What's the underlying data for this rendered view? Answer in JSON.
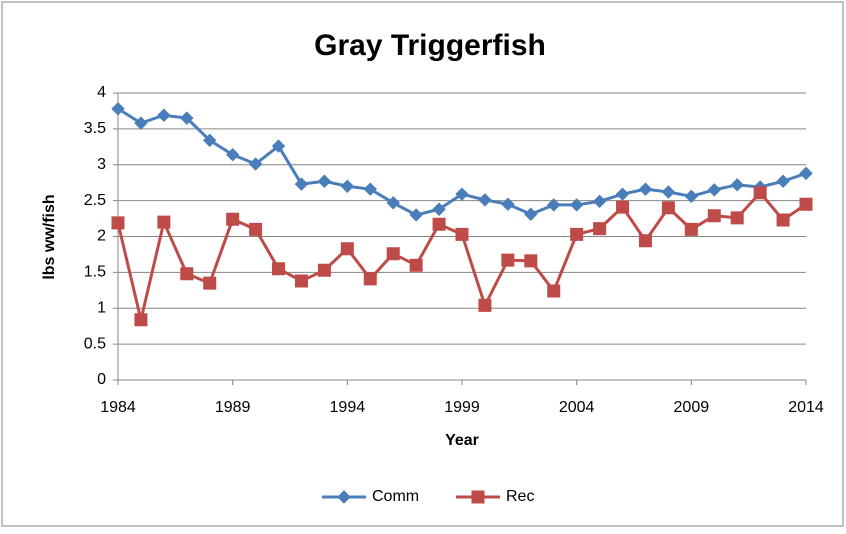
{
  "chart_data": {
    "type": "line",
    "title": "Gray Triggerfish",
    "x_label": "Year",
    "y_label": "lbs ww/fish",
    "x": [
      1984,
      1985,
      1986,
      1987,
      1988,
      1989,
      1990,
      1991,
      1992,
      1993,
      1994,
      1995,
      1996,
      1997,
      1998,
      1999,
      2000,
      2001,
      2002,
      2003,
      2004,
      2005,
      2006,
      2007,
      2008,
      2009,
      2010,
      2011,
      2012,
      2013,
      2014
    ],
    "series": [
      {
        "name": "Comm",
        "color": "#4a7ebb",
        "marker": "diamond",
        "values": [
          3.78,
          3.58,
          3.69,
          3.65,
          3.34,
          3.14,
          3.01,
          3.26,
          2.73,
          2.77,
          2.7,
          2.66,
          2.47,
          2.3,
          2.38,
          2.59,
          2.51,
          2.45,
          2.31,
          2.44,
          2.44,
          2.49,
          2.59,
          2.66,
          2.62,
          2.56,
          2.65,
          2.72,
          2.69,
          2.77,
          2.88
        ]
      },
      {
        "name": "Rec",
        "color": "#be4b48",
        "marker": "square",
        "values": [
          2.19,
          0.84,
          2.2,
          1.48,
          1.35,
          2.24,
          2.1,
          1.55,
          1.38,
          1.53,
          1.83,
          1.41,
          1.76,
          1.6,
          2.17,
          2.03,
          1.04,
          1.67,
          1.66,
          1.24,
          2.03,
          2.11,
          2.41,
          1.94,
          2.4,
          2.1,
          2.29,
          2.26,
          2.61,
          2.23,
          2.45
        ]
      }
    ],
    "xlim": [
      1984,
      2014
    ],
    "xticks": [
      1984,
      1989,
      1994,
      1999,
      2004,
      2009,
      2014
    ],
    "ylim": [
      0,
      4
    ],
    "yticks": [
      0,
      0.5,
      1,
      1.5,
      2,
      2.5,
      3,
      3.5,
      4
    ],
    "grid": true,
    "legend": "bottom"
  }
}
